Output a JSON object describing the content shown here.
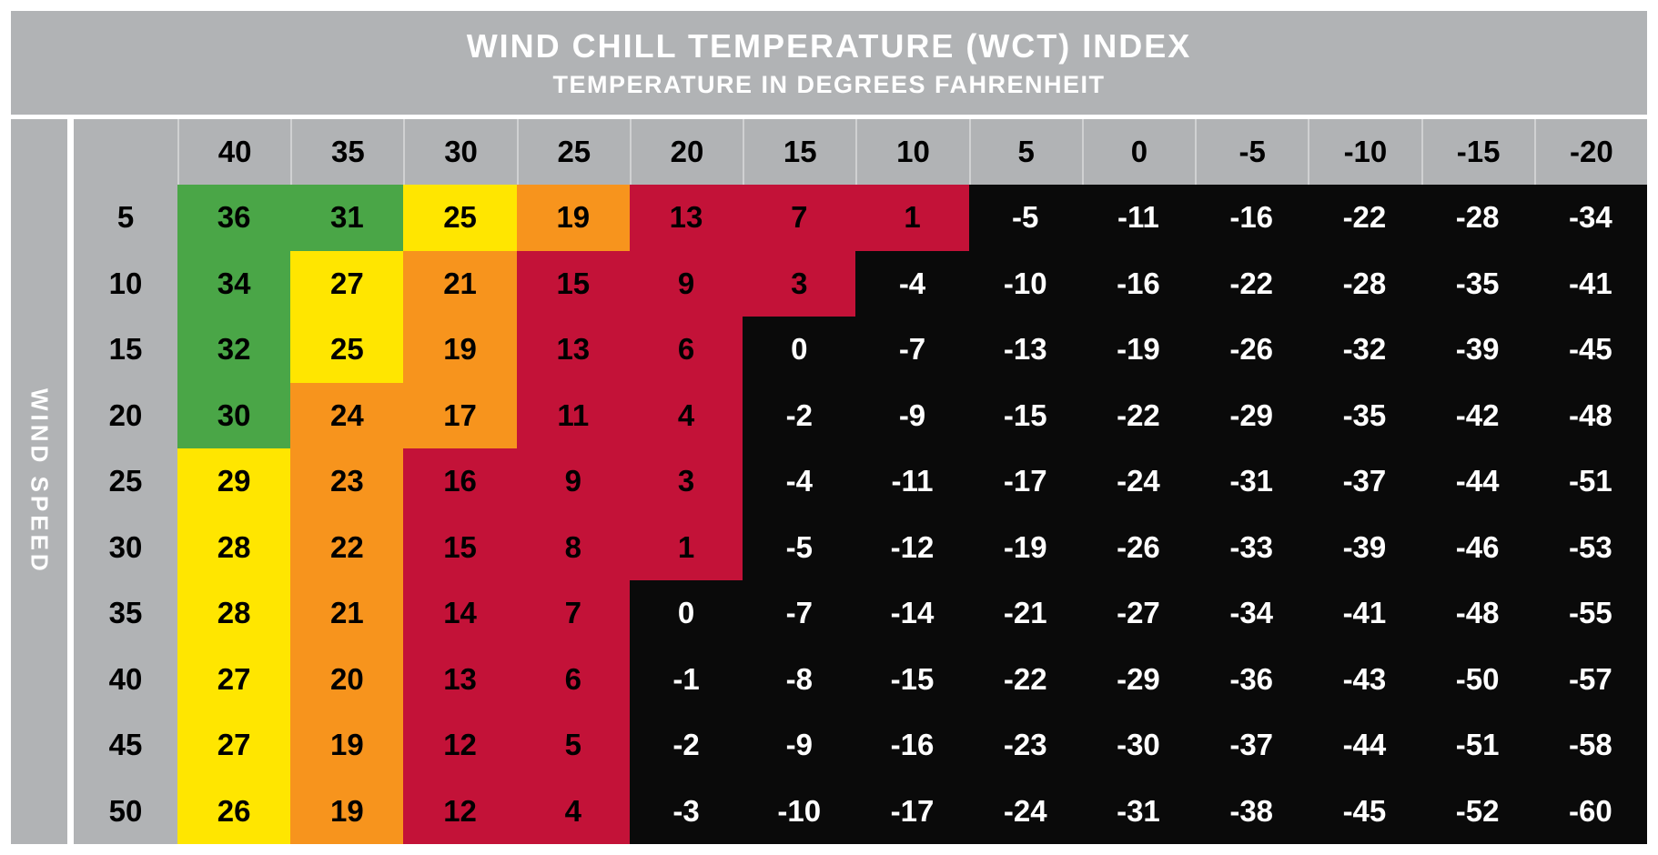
{
  "header": {
    "title": "WIND CHILL TEMPERATURE (WCT) INDEX",
    "subtitle": "TEMPERATURE IN DEGREES FAHRENHEIT"
  },
  "side_label": "WIND SPEED",
  "chart_data": {
    "type": "heatmap",
    "title": "WIND CHILL TEMPERATURE (WCT) INDEX",
    "subtitle": "TEMPERATURE IN DEGREES FAHRENHEIT",
    "xlabel": "TEMPERATURE IN DEGREES FAHRENHEIT",
    "ylabel": "WIND SPEED",
    "legend_position": "none",
    "grid": false,
    "temperatures_f": [
      40,
      35,
      30,
      25,
      20,
      15,
      10,
      5,
      0,
      -5,
      -10,
      -15,
      -20
    ],
    "wind_speeds_mph": [
      5,
      10,
      15,
      20,
      25,
      30,
      35,
      40,
      45,
      50
    ],
    "rows": [
      {
        "wind_speed": 5,
        "values": [
          36,
          31,
          25,
          19,
          13,
          7,
          1,
          -5,
          -11,
          -16,
          -22,
          -28,
          -34
        ],
        "zones": [
          "green",
          "green",
          "yellow",
          "orange",
          "red",
          "red",
          "red",
          "black",
          "black",
          "black",
          "black",
          "black",
          "black"
        ]
      },
      {
        "wind_speed": 10,
        "values": [
          34,
          27,
          21,
          15,
          9,
          3,
          -4,
          -10,
          -16,
          -22,
          -28,
          -35,
          -41
        ],
        "zones": [
          "green",
          "yellow",
          "orange",
          "red",
          "red",
          "red",
          "black",
          "black",
          "black",
          "black",
          "black",
          "black",
          "black"
        ]
      },
      {
        "wind_speed": 15,
        "values": [
          32,
          25,
          19,
          13,
          6,
          0,
          -7,
          -13,
          -19,
          -26,
          -32,
          -39,
          -45
        ],
        "zones": [
          "green",
          "yellow",
          "orange",
          "red",
          "red",
          "black",
          "black",
          "black",
          "black",
          "black",
          "black",
          "black",
          "black"
        ]
      },
      {
        "wind_speed": 20,
        "values": [
          30,
          24,
          17,
          11,
          4,
          -2,
          -9,
          -15,
          -22,
          -29,
          -35,
          -42,
          -48
        ],
        "zones": [
          "green",
          "orange",
          "orange",
          "red",
          "red",
          "black",
          "black",
          "black",
          "black",
          "black",
          "black",
          "black",
          "black"
        ]
      },
      {
        "wind_speed": 25,
        "values": [
          29,
          23,
          16,
          9,
          3,
          -4,
          -11,
          -17,
          -24,
          -31,
          -37,
          -44,
          -51
        ],
        "zones": [
          "yellow",
          "orange",
          "red",
          "red",
          "red",
          "black",
          "black",
          "black",
          "black",
          "black",
          "black",
          "black",
          "black"
        ]
      },
      {
        "wind_speed": 30,
        "values": [
          28,
          22,
          15,
          8,
          1,
          -5,
          -12,
          -19,
          -26,
          -33,
          -39,
          -46,
          -53
        ],
        "zones": [
          "yellow",
          "orange",
          "red",
          "red",
          "red",
          "black",
          "black",
          "black",
          "black",
          "black",
          "black",
          "black",
          "black"
        ]
      },
      {
        "wind_speed": 35,
        "values": [
          28,
          21,
          14,
          7,
          0,
          -7,
          -14,
          -21,
          -27,
          -34,
          -41,
          -48,
          -55
        ],
        "zones": [
          "yellow",
          "orange",
          "red",
          "red",
          "black",
          "black",
          "black",
          "black",
          "black",
          "black",
          "black",
          "black",
          "black"
        ]
      },
      {
        "wind_speed": 40,
        "values": [
          27,
          20,
          13,
          6,
          -1,
          -8,
          -15,
          -22,
          -29,
          -36,
          -43,
          -50,
          -57
        ],
        "zones": [
          "yellow",
          "orange",
          "red",
          "red",
          "black",
          "black",
          "black",
          "black",
          "black",
          "black",
          "black",
          "black",
          "black"
        ]
      },
      {
        "wind_speed": 45,
        "values": [
          27,
          19,
          12,
          5,
          -2,
          -9,
          -16,
          -23,
          -30,
          -37,
          -44,
          -51,
          -58
        ],
        "zones": [
          "yellow",
          "orange",
          "red",
          "red",
          "black",
          "black",
          "black",
          "black",
          "black",
          "black",
          "black",
          "black",
          "black"
        ]
      },
      {
        "wind_speed": 50,
        "values": [
          26,
          19,
          12,
          4,
          -3,
          -10,
          -17,
          -24,
          -31,
          -38,
          -45,
          -52,
          -60
        ],
        "zones": [
          "yellow",
          "orange",
          "red",
          "red",
          "black",
          "black",
          "black",
          "black",
          "black",
          "black",
          "black",
          "black",
          "black"
        ]
      }
    ],
    "zone_thresholds": {
      "green": "wct >= 30",
      "yellow": "wct 25 to 29",
      "orange": "wct 17 to 24",
      "red": "wct 1 to 16",
      "black": "wct <= 0"
    },
    "colors": {
      "green": "#4aa647",
      "yellow": "#ffe600",
      "orange": "#f7941d",
      "red": "#c31238",
      "black": "#0a0a0a",
      "header_gray": "#b1b3b5",
      "header_text": "#ffffff",
      "axis_text": "#000000"
    }
  }
}
